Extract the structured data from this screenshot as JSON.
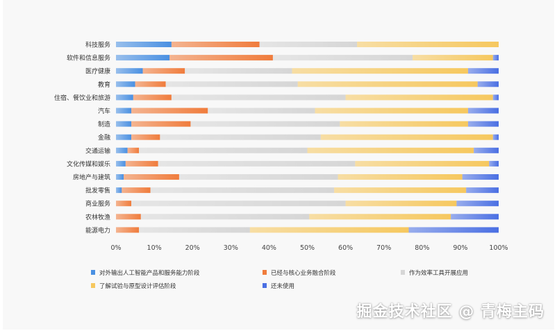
{
  "chart_data": {
    "type": "bar",
    "orientation": "horizontal",
    "stacked": true,
    "normalized": true,
    "categories": [
      "科技服务",
      "软件和信息服务",
      "医疗健康",
      "教育",
      "住宿、餐饮业和旅游",
      "汽车",
      "制造",
      "金融",
      "交通运输",
      "文化传媒和娱乐",
      "房地产与建筑",
      "批发零售",
      "商业服务",
      "农林牧渔",
      "能源电力"
    ],
    "series": [
      {
        "name": "对外输出人工智能产品和服务能力阶段",
        "values": [
          14.5,
          14,
          7,
          5,
          4.5,
          4,
          4,
          4,
          3,
          2.5,
          2,
          1.5,
          0,
          0,
          0
        ]
      },
      {
        "name": "已经与核心业务融合阶段",
        "values": [
          23,
          27,
          11,
          8,
          10,
          20,
          15.5,
          7.5,
          3,
          8.5,
          14.5,
          7.5,
          4,
          6.5,
          6
        ]
      },
      {
        "name": "作为效率工具开展应用",
        "values": [
          25.5,
          36.5,
          28,
          34.5,
          45.5,
          28,
          39,
          42,
          44,
          51.5,
          41.5,
          48,
          56,
          44,
          29
        ]
      },
      {
        "name": "了解试验与原型设计评估阶段",
        "values": [
          37,
          21,
          46,
          47,
          38.5,
          40,
          33.5,
          45,
          43.5,
          35,
          32.5,
          34.5,
          29,
          37,
          41.5
        ]
      },
      {
        "name": "还未使用",
        "values": [
          0,
          1.5,
          8,
          5.5,
          1.5,
          8,
          8,
          1.5,
          6.5,
          2.5,
          9.5,
          8.5,
          11,
          12.5,
          23.5
        ]
      }
    ],
    "colors": [
      "#4a90e2",
      "#f07c3c",
      "#d6d6d6",
      "#f6c85f",
      "#4a6fe3"
    ],
    "xaxis": {
      "ticks": [
        "0%",
        "10%",
        "20%",
        "30%",
        "40%",
        "50%",
        "60%",
        "70%",
        "80%",
        "90%",
        "100%"
      ],
      "range": [
        0,
        100
      ]
    },
    "legend_position": "bottom-left",
    "grid": false
  },
  "watermark": "掘金技术社区 @ 青梅主码"
}
